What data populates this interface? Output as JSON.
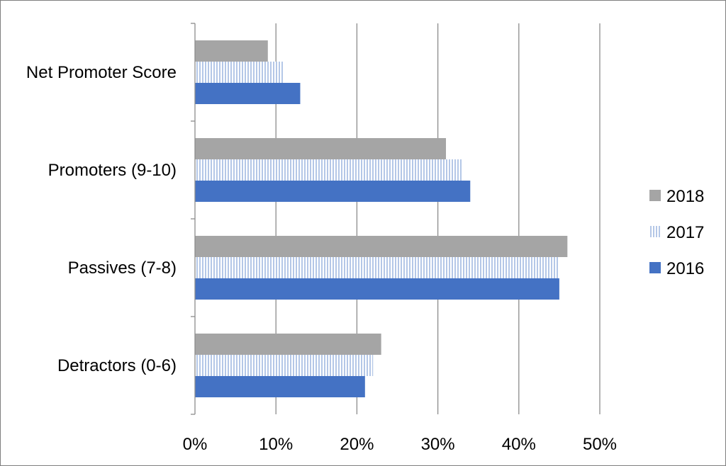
{
  "chart_data": {
    "type": "bar",
    "orientation": "horizontal",
    "categories": [
      "Detractors (0-6)",
      "Passives (7-8)",
      "Promoters (9-10)",
      "Net Promoter Score"
    ],
    "series": [
      {
        "name": "2016",
        "values": [
          21,
          45,
          34,
          13
        ],
        "color": "#4472c4",
        "pattern": "solid"
      },
      {
        "name": "2017",
        "values": [
          22,
          45,
          33,
          11
        ],
        "color": "#b4c7e7",
        "pattern": "vertical-lines"
      },
      {
        "name": "2018",
        "values": [
          23,
          46,
          31,
          9
        ],
        "color": "#a5a5a5",
        "pattern": "solid"
      }
    ],
    "x_ticks": [
      "0%",
      "10%",
      "20%",
      "30%",
      "40%",
      "50%"
    ],
    "xlim": [
      0,
      50
    ],
    "value_unit": "%",
    "grid": true,
    "legend": {
      "placement": "right",
      "order": [
        "2018",
        "2017",
        "2016"
      ]
    }
  }
}
